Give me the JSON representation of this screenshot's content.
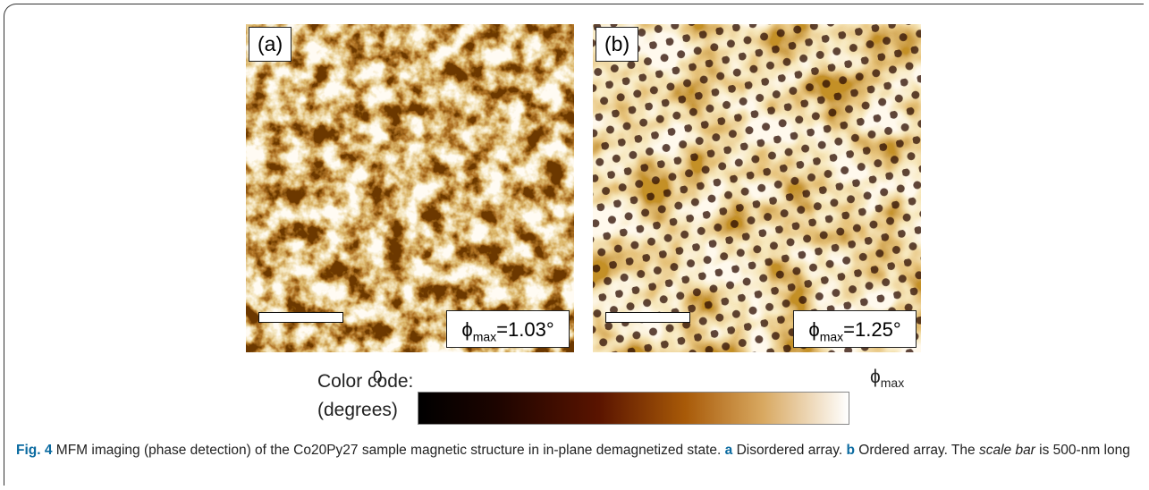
{
  "panels": [
    {
      "label": "(a)",
      "phi_symbol": "ϕ",
      "phi_sub": "max",
      "phi_value": "=1.03°"
    },
    {
      "label": "(b)",
      "phi_symbol": "ϕ",
      "phi_sub": "max",
      "phi_value": "=1.25°"
    }
  ],
  "color_code": {
    "label_line1": "Color code:",
    "label_line2": "(degrees)",
    "min_label": "0",
    "max_symbol": "ϕ",
    "max_sub": "max"
  },
  "caption": {
    "fig_label": "Fig. 4",
    "text": "MFM imaging (phase detection) of the Co20Py27 sample magnetic structure in in-plane demagnetized state.",
    "part_a_label": "a",
    "part_a_text": "Disordered array.",
    "part_b_label": "b",
    "part_b_text": "Ordered array. The",
    "scale_term": "scale bar",
    "end_text": "is 500-nm long"
  }
}
